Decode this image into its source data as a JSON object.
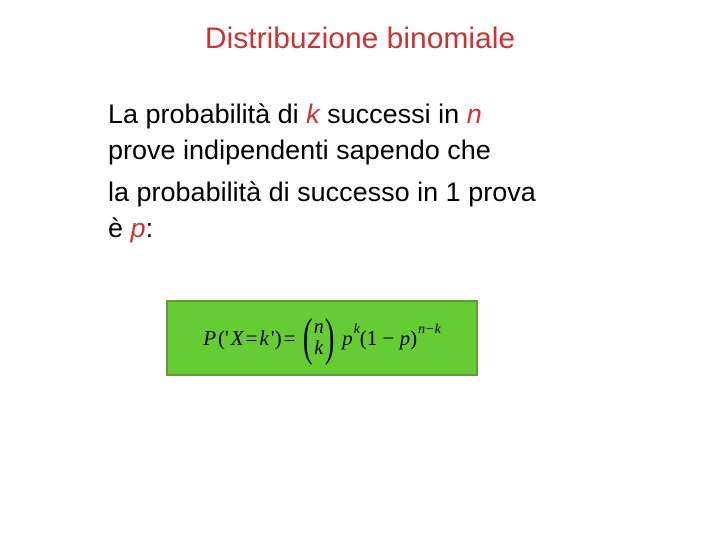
{
  "title": {
    "text": "Distribuzione binomiale",
    "color": "#cc3333",
    "fontsize": 30
  },
  "body": {
    "line1_a": "La probabilità di ",
    "line1_k": "k",
    "line1_b": " successi in ",
    "line1_n": "n",
    "line2": "prove indipendenti sapendo che",
    "line3": "la probabilità di successo in 1 prova",
    "line4_a": "è ",
    "line4_p": "p",
    "line4_b": ":",
    "text_color": "#000000",
    "italic_color": "#cc3333",
    "fontsize": 27
  },
  "formula": {
    "box_bg": "#66cc33",
    "box_border": "#669933",
    "P": "P",
    "open": "(' ",
    "X": "X",
    "eq": " = ",
    "k": "k",
    "close": " ')",
    "eq2": " = ",
    "binom_top": "n",
    "binom_bot": "k",
    "p": "p",
    "exp_k": "k",
    "one_minus": "(1 − ",
    "p2": "p",
    "cp": ")",
    "exp_nk": "n−k"
  }
}
